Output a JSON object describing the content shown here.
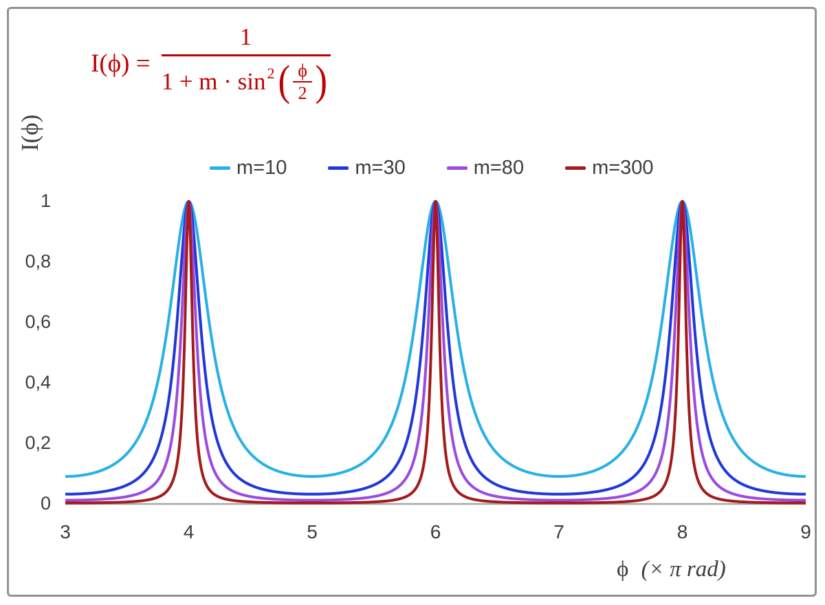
{
  "formula": {
    "lhs": "I(ϕ) =",
    "numerator": "1",
    "den_text": "1 + m · sin",
    "den_exp": "2",
    "paren_open": "(",
    "paren_close": ")",
    "inner_num": "ϕ",
    "inner_den": "2",
    "color": "#c00000"
  },
  "x_label_parts": {
    "prefix": "ϕ",
    "rest": "(× π rad)"
  },
  "chart_data": {
    "type": "line",
    "title": "",
    "function": "I(x) = 1 / (1 + m * sin^2(pi * x / 2)), x in units of pi rad",
    "x_label": "ϕ (× π rad)",
    "y_label": "I(ϕ)",
    "x_range": [
      3,
      9
    ],
    "y_range": [
      0,
      1
    ],
    "grid": false,
    "legend_position": "top",
    "peaks_at_x": [
      4,
      6,
      8
    ],
    "peak_value": 1,
    "x_ticks": [
      {
        "value": 3,
        "label": "3"
      },
      {
        "value": 4,
        "label": "4"
      },
      {
        "value": 5,
        "label": "5"
      },
      {
        "value": 6,
        "label": "6"
      },
      {
        "value": 7,
        "label": "7"
      },
      {
        "value": 8,
        "label": "8"
      },
      {
        "value": 9,
        "label": "9"
      }
    ],
    "y_ticks": [
      {
        "value": 0,
        "label": "0"
      },
      {
        "value": 0.2,
        "label": "0,2"
      },
      {
        "value": 0.4,
        "label": "0,4"
      },
      {
        "value": 0.6,
        "label": "0,6"
      },
      {
        "value": 0.8,
        "label": "0,8"
      },
      {
        "value": 1,
        "label": "1"
      }
    ],
    "series": [
      {
        "name": "m=10",
        "m": 10,
        "color": "#29b0e6",
        "min_I": 0.0909
      },
      {
        "name": "m=30",
        "m": 30,
        "color": "#2038d8",
        "min_I": 0.0323
      },
      {
        "name": "m=80",
        "m": 80,
        "color": "#9b4be0",
        "min_I": 0.0123
      },
      {
        "name": "m=300",
        "m": 300,
        "color": "#a31b1b",
        "min_I": 0.0033
      }
    ],
    "axis_color": "#a6a6a6",
    "tick_text_color": "#3d3d3d"
  }
}
